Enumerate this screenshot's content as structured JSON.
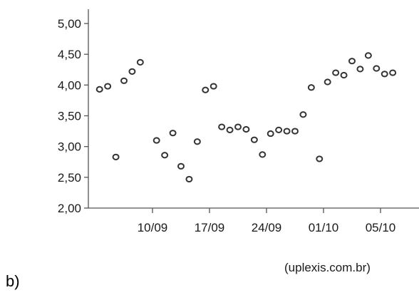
{
  "panel_label": "b)",
  "source": "(uplexis.com.br)",
  "colors": {
    "axis": "#555555",
    "marker_stroke": "#333333",
    "marker_fill": "#ffffff",
    "text": "#1a1a1a"
  },
  "chart_data": {
    "type": "scatter",
    "title": "",
    "xlabel": "",
    "ylabel": "",
    "grid": false,
    "ylim": [
      2.0,
      5.0
    ],
    "y_ticks": [
      {
        "value": 5.0,
        "label": "5,00"
      },
      {
        "value": 4.5,
        "label": "4,50"
      },
      {
        "value": 4.0,
        "label": "4,00"
      },
      {
        "value": 3.5,
        "label": "3,50"
      },
      {
        "value": 3.0,
        "label": "3,00"
      },
      {
        "value": 2.5,
        "label": "2,50"
      },
      {
        "value": 2.0,
        "label": "2,00"
      }
    ],
    "x_ticks": [
      {
        "value": 10.5,
        "label": "10/09"
      },
      {
        "value": 17.5,
        "label": "17/09"
      },
      {
        "value": 24.5,
        "label": "24/09"
      },
      {
        "value": 31.5,
        "label": "01/10"
      },
      {
        "value": 38.5,
        "label": "05/10"
      }
    ],
    "xlim": [
      3.5,
      42.0
    ],
    "x": [
      4,
      5,
      6,
      7,
      8,
      9,
      11,
      12,
      13,
      14,
      15,
      16,
      17,
      18,
      19,
      20,
      21,
      22,
      23,
      24,
      25,
      26,
      27,
      28,
      29,
      30,
      31,
      32,
      33,
      34,
      35,
      36,
      37,
      38,
      39,
      40
    ],
    "y": [
      3.93,
      3.98,
      2.83,
      4.07,
      4.22,
      4.37,
      3.1,
      2.86,
      3.22,
      2.68,
      2.47,
      3.08,
      3.92,
      3.98,
      3.32,
      3.27,
      3.32,
      3.28,
      3.11,
      2.87,
      3.21,
      3.27,
      3.25,
      3.25,
      3.52,
      3.96,
      2.8,
      4.05,
      4.2,
      4.16,
      4.39,
      4.26,
      4.48,
      4.27,
      4.18,
      4.2
    ]
  }
}
